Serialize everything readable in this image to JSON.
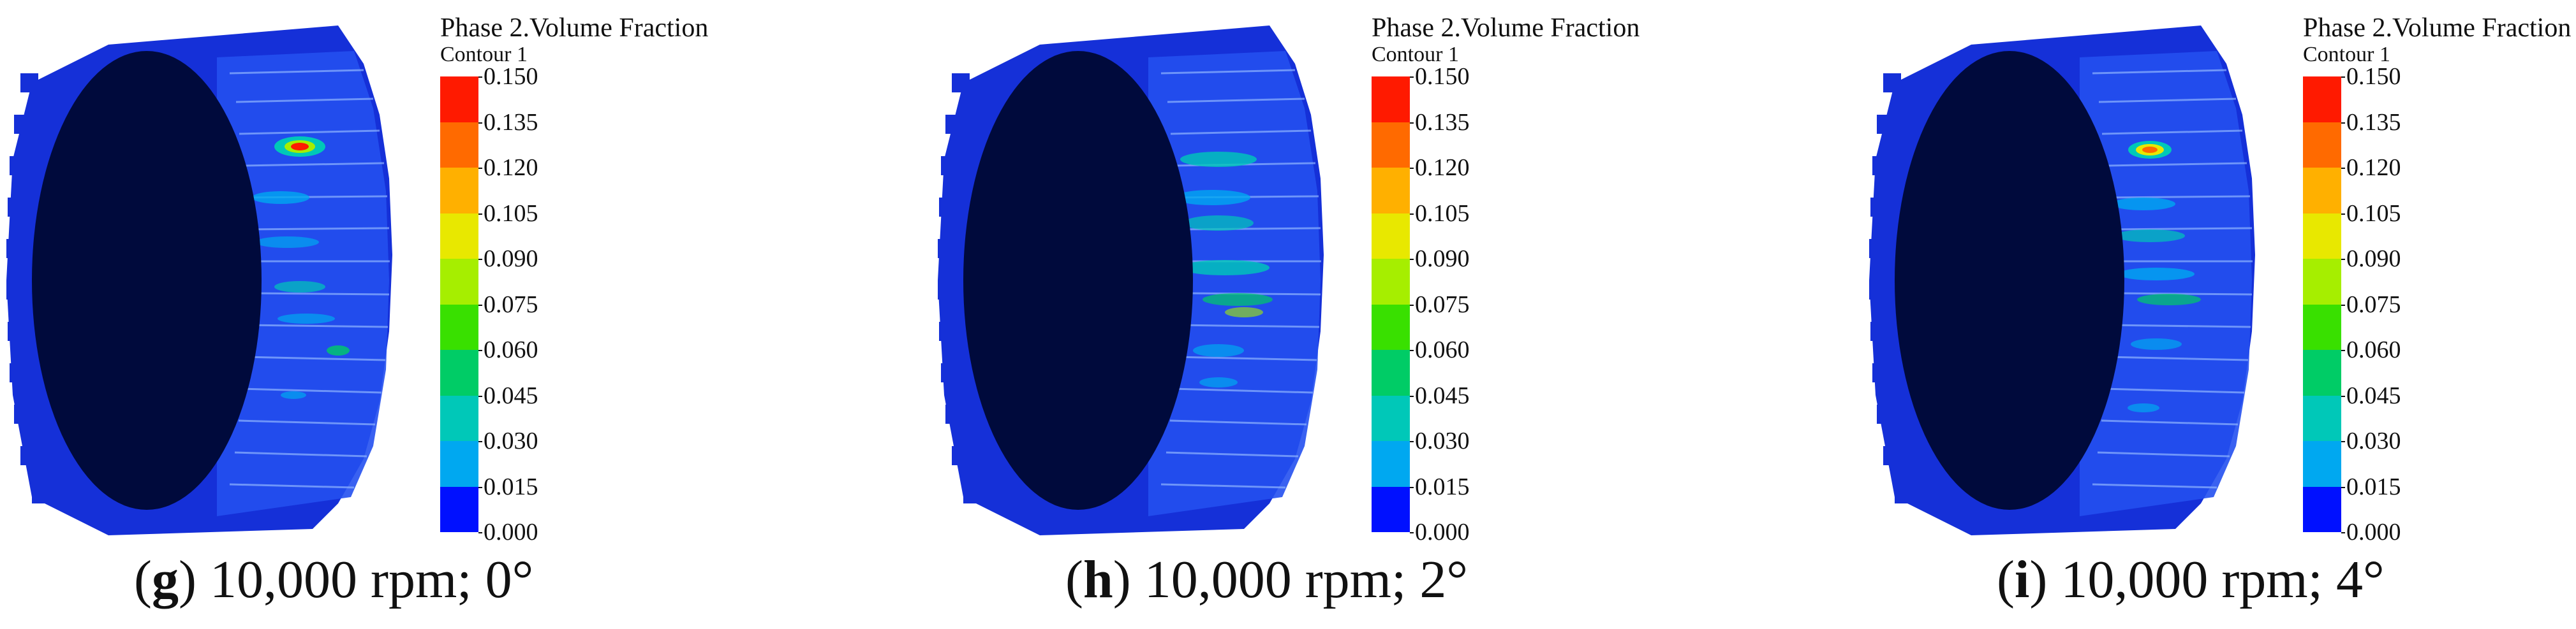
{
  "legend": {
    "title": "Phase 2.Volume Fraction",
    "subtitle": "Contour 1",
    "ticks": [
      "0.150",
      "0.135",
      "0.120",
      "0.105",
      "0.090",
      "0.075",
      "0.060",
      "0.045",
      "0.030",
      "0.015",
      "0.000"
    ],
    "colors": [
      "#ff1a00",
      "#ff6a00",
      "#ffb000",
      "#e8e800",
      "#a6ee00",
      "#39e000",
      "#00cc66",
      "#00c8b8",
      "#00a8f0",
      "#0060ff",
      "#0010ff"
    ]
  },
  "panels": [
    {
      "letter": "g",
      "caption": "10,000 rpm; 0°"
    },
    {
      "letter": "h",
      "caption": "10,000 rpm; 2°"
    },
    {
      "letter": "i",
      "caption": "10,000 rpm; 4°"
    }
  ]
}
